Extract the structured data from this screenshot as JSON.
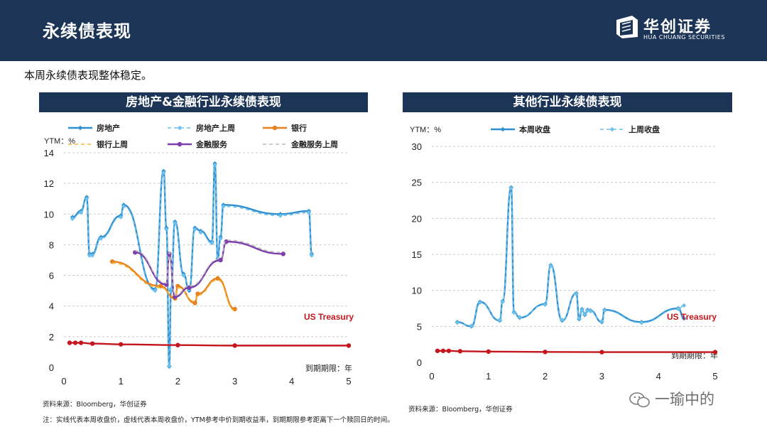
{
  "header": {
    "title": "永续债表现"
  },
  "logo": {
    "cn": "华创证券",
    "en": "HUA CHUANG SECURITIES",
    "icon": "cube-logo-icon"
  },
  "subtitle": "本周永续债表现整体稳定。",
  "panels": {
    "left_title": "房地产&金融行业永续债表现",
    "right_title": "其他行业永续债表现"
  },
  "sources": {
    "left": "资料来源：Bloomberg，华创证券",
    "right": "资料来源：Bloomberg，华创证券"
  },
  "footnote": "注：实线代表本周收盘价，虚线代表本周收盘价，YTM参考中价到期收益率，到期期限参考距离下一个赎回日的时间。",
  "watermark": "一瑜中的",
  "chart_data": [
    {
      "type": "line",
      "ylabel": "YTM：%",
      "xlabel": "到期期限：年",
      "xlim": [
        0,
        5
      ],
      "ylim": [
        0,
        14
      ],
      "xticks": [
        0,
        1,
        2,
        3,
        4,
        5
      ],
      "yticks": [
        0,
        2,
        4,
        6,
        8,
        10,
        12,
        14
      ],
      "grid": "horizontal-dashed",
      "legend_position": "top",
      "annotation": "US Treasury",
      "colors": {
        "realestate": "#2e8fd1",
        "realestate_last": "#6cc0ec",
        "bank": "#e8811f",
        "bank_last": "#f5b731",
        "finance": "#7d3fab",
        "finance_last": "#bbbbbb",
        "treasury": "#c6161d"
      },
      "series": [
        {
          "name": "房地产",
          "key": "realestate",
          "style": "solid-diamond",
          "x": [
            0.15,
            0.3,
            0.4,
            0.45,
            0.5,
            0.65,
            1.0,
            1.05,
            1.6,
            1.75,
            1.8,
            1.85,
            1.88,
            1.95,
            2.1,
            2.2,
            2.3,
            2.4,
            2.6,
            2.65,
            2.7,
            2.75,
            2.8,
            3.8,
            4.3,
            4.35
          ],
          "y": [
            9.8,
            10.2,
            11.1,
            7.4,
            7.4,
            8.5,
            9.9,
            10.6,
            5.1,
            12.8,
            9.1,
            0.05,
            5.0,
            9.5,
            6.1,
            5.0,
            9.1,
            8.9,
            8.2,
            13.3,
            7.1,
            8.5,
            10.6,
            10.0,
            10.2,
            7.4
          ]
        },
        {
          "name": "房地产上周",
          "key": "realestate_last",
          "style": "dashed-diamond",
          "x": [
            0.15,
            0.3,
            0.4,
            0.45,
            0.5,
            0.65,
            1.0,
            1.05,
            1.6,
            1.75,
            1.8,
            1.85,
            1.88,
            1.95,
            2.1,
            2.2,
            2.3,
            2.4,
            2.6,
            2.65,
            2.7,
            2.75,
            2.8,
            3.8,
            4.3,
            4.35
          ],
          "y": [
            9.7,
            10.1,
            11.0,
            7.3,
            7.3,
            8.4,
            9.8,
            10.5,
            5.0,
            12.7,
            9.0,
            0.1,
            5.1,
            9.4,
            6.0,
            5.1,
            9.0,
            8.8,
            8.1,
            13.2,
            7.0,
            8.4,
            10.5,
            9.9,
            10.1,
            7.3
          ]
        },
        {
          "name": "银行",
          "key": "bank",
          "style": "solid-circle",
          "x": [
            0.85,
            1.7,
            1.95,
            2.0,
            2.3,
            2.35,
            2.7,
            3.0
          ],
          "y": [
            6.9,
            5.3,
            4.5,
            5.3,
            4.2,
            4.8,
            5.8,
            3.8
          ]
        },
        {
          "name": "银行上周",
          "key": "bank_last",
          "style": "dashed",
          "x": [
            0.85,
            1.7,
            1.95,
            2.0,
            2.3,
            2.35,
            2.7,
            3.0
          ],
          "y": [
            6.8,
            5.2,
            4.6,
            5.2,
            4.3,
            4.7,
            5.7,
            3.7
          ]
        },
        {
          "name": "金融服务",
          "key": "finance",
          "style": "solid-circle",
          "x": [
            1.25,
            1.8,
            1.85,
            1.95,
            2.2,
            2.75,
            2.85,
            3.85
          ],
          "y": [
            7.5,
            5.4,
            7.4,
            4.6,
            5.2,
            7.0,
            8.2,
            7.4
          ]
        },
        {
          "name": "金融服务上周",
          "key": "finance_last",
          "style": "dashed",
          "x": [
            1.25,
            1.8,
            1.85,
            1.95,
            2.2,
            2.75,
            2.85,
            3.85
          ],
          "y": [
            7.6,
            5.5,
            7.5,
            4.7,
            5.3,
            7.1,
            8.3,
            7.5
          ]
        },
        {
          "name": "US Treasury",
          "key": "treasury",
          "style": "solid-circle",
          "x": [
            0.1,
            0.2,
            0.3,
            0.5,
            1.0,
            2.0,
            3.0,
            5.0
          ],
          "y": [
            1.6,
            1.6,
            1.6,
            1.55,
            1.5,
            1.45,
            1.42,
            1.42
          ]
        }
      ]
    },
    {
      "type": "line",
      "ylabel": "YTM：%",
      "xlabel": "到期期限：年",
      "xlim": [
        0,
        5
      ],
      "ylim": [
        0,
        30
      ],
      "xticks": [
        0,
        1,
        2,
        3,
        4,
        5
      ],
      "yticks": [
        0,
        5,
        10,
        15,
        20,
        25,
        30
      ],
      "grid": "horizontal-dashed",
      "legend_position": "top",
      "annotation": "US Treasury",
      "colors": {
        "this_week": "#2e8fd1",
        "last_week": "#6cc0ec",
        "treasury": "#c6161d"
      },
      "series": [
        {
          "name": "本周收盘",
          "key": "this_week",
          "style": "solid-diamond",
          "x": [
            0.45,
            0.7,
            0.85,
            1.2,
            1.25,
            1.4,
            1.45,
            1.55,
            2.0,
            2.1,
            2.3,
            2.55,
            2.6,
            2.65,
            2.7,
            2.75,
            2.8,
            3.0,
            3.05,
            3.7,
            4.35,
            4.45
          ],
          "y": [
            5.6,
            5.0,
            8.4,
            5.8,
            8.5,
            24.3,
            7.0,
            6.2,
            8.1,
            13.5,
            5.8,
            9.6,
            6.0,
            7.4,
            6.6,
            7.3,
            7.2,
            5.6,
            7.3,
            5.6,
            7.5,
            6.1
          ]
        },
        {
          "name": "上周收盘",
          "key": "last_week",
          "style": "dashed-diamond",
          "x": [
            0.45,
            0.7,
            0.85,
            1.2,
            1.25,
            1.4,
            1.45,
            1.55,
            2.0,
            2.1,
            2.3,
            2.55,
            2.6,
            2.65,
            2.7,
            2.75,
            2.8,
            3.0,
            3.05,
            3.7,
            4.35,
            4.45
          ],
          "y": [
            5.5,
            5.1,
            8.3,
            5.9,
            8.4,
            24.2,
            6.9,
            6.3,
            8.0,
            13.4,
            5.9,
            9.5,
            6.1,
            7.3,
            6.7,
            7.2,
            7.1,
            5.7,
            7.2,
            5.5,
            7.4,
            7.9
          ]
        },
        {
          "name": "US Treasury",
          "key": "treasury",
          "style": "solid-circle",
          "x": [
            0.1,
            0.2,
            0.3,
            0.5,
            1.0,
            2.0,
            3.0,
            5.0
          ],
          "y": [
            1.6,
            1.6,
            1.6,
            1.55,
            1.5,
            1.45,
            1.42,
            1.42
          ]
        }
      ]
    }
  ]
}
